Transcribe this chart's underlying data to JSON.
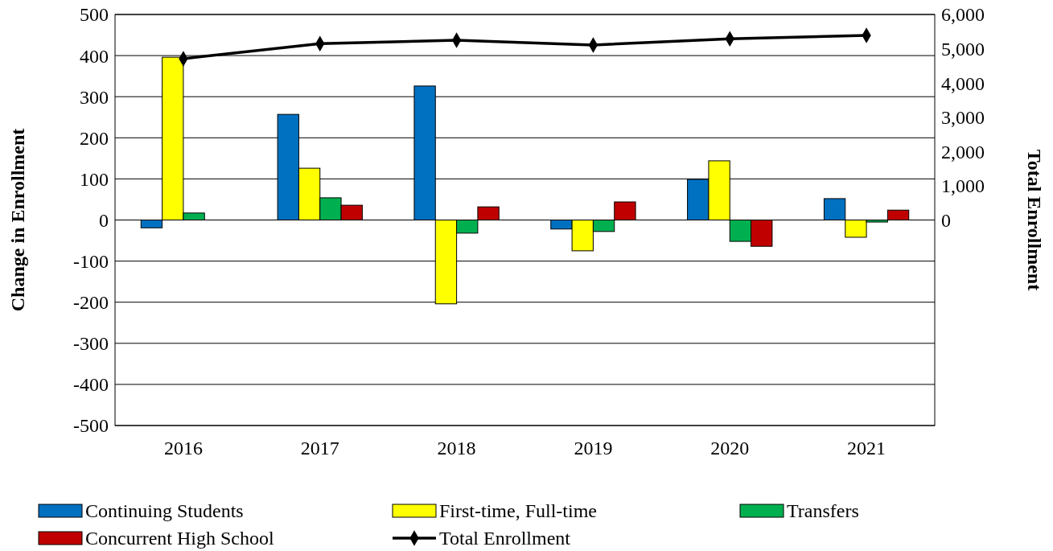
{
  "chart_data": {
    "type": "bar",
    "categories": [
      "2016",
      "2017",
      "2018",
      "2019",
      "2020",
      "2021"
    ],
    "ylabel": "Change in Enrollment",
    "y2label": "Total Enrollment",
    "ylim": [
      -500,
      500
    ],
    "yticks": [
      -500,
      -400,
      -300,
      -200,
      -100,
      0,
      100,
      200,
      300,
      400,
      500
    ],
    "y2lim": [
      -6000,
      6000
    ],
    "y2ticks": [
      {
        "value": 0,
        "label": "0"
      },
      {
        "value": 1000,
        "label": "1,000"
      },
      {
        "value": 2000,
        "label": "2,000"
      },
      {
        "value": 3000,
        "label": "3,000"
      },
      {
        "value": 4000,
        "label": "4,000"
      },
      {
        "value": 5000,
        "label": "5,000"
      },
      {
        "value": 6000,
        "label": "6,000"
      }
    ],
    "grid": "y",
    "legend": "bottom",
    "series": [
      {
        "name": "Continuing Students",
        "color": "#0070c0",
        "values": [
          -19,
          257,
          326,
          -22,
          99,
          52
        ]
      },
      {
        "name": "First-time, Full-time",
        "color": "#ffff00",
        "values": [
          396,
          126,
          -204,
          -75,
          144,
          -42
        ]
      },
      {
        "name": "Transfers",
        "color": "#00b050",
        "values": [
          17,
          54,
          -32,
          -28,
          -52,
          -5
        ]
      },
      {
        "name": "Concurrent High School",
        "color": "#c00000",
        "values": [
          null,
          36,
          32,
          44,
          -64,
          24
        ]
      },
      {
        "name": "Total Enrollment",
        "type": "line",
        "axis": "y2",
        "color": "#000000",
        "marker": "diamond",
        "values": [
          4710,
          5150,
          5250,
          5110,
          5290,
          5390
        ]
      }
    ]
  }
}
